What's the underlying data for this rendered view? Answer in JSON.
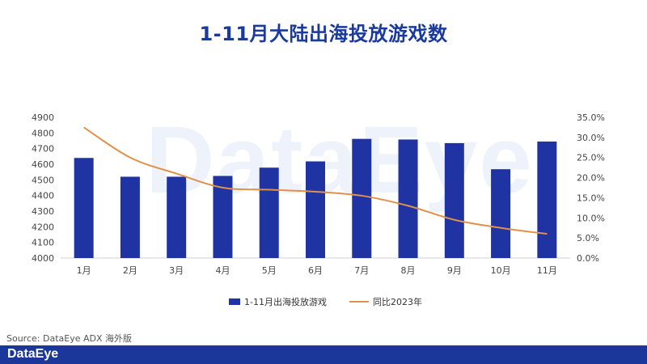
{
  "title": "1-11月大陆出海投放游戏数",
  "watermark": "DataEye",
  "source": "Source: DataEye ADX 海外版",
  "footer_logo": "DataEye",
  "colors": {
    "bar": "#1f33a3",
    "line": "#e0914a",
    "title": "#1a3a9e",
    "footer": "#1b3799"
  },
  "chart_data": {
    "type": "bar+line",
    "categories": [
      "1月",
      "2月",
      "3月",
      "4月",
      "5月",
      "6月",
      "7月",
      "8月",
      "9月",
      "10月",
      "11月"
    ],
    "series": [
      {
        "name": "1-11月出海投放游戏",
        "type": "bar",
        "axis": "left",
        "values": [
          4640,
          4520,
          4520,
          4525,
          4578,
          4618,
          4762,
          4758,
          4735,
          4568,
          4745
        ]
      },
      {
        "name": "同比2023年",
        "type": "line",
        "axis": "right",
        "values": [
          32.5,
          25.0,
          21.0,
          17.5,
          17.0,
          16.5,
          15.5,
          13.0,
          9.5,
          7.5,
          6.0
        ]
      }
    ],
    "y_left": {
      "min": 4000,
      "max": 4900,
      "ticks": [
        "4000",
        "4100",
        "4200",
        "4300",
        "4400",
        "4500",
        "4600",
        "4700",
        "4800",
        "4900"
      ]
    },
    "y_right": {
      "min": 0,
      "max": 35,
      "ticks": [
        "0.0%",
        "5.0%",
        "10.0%",
        "15.0%",
        "20.0%",
        "25.0%",
        "30.0%",
        "35.0%"
      ]
    },
    "grid": false,
    "legend_position": "bottom"
  }
}
